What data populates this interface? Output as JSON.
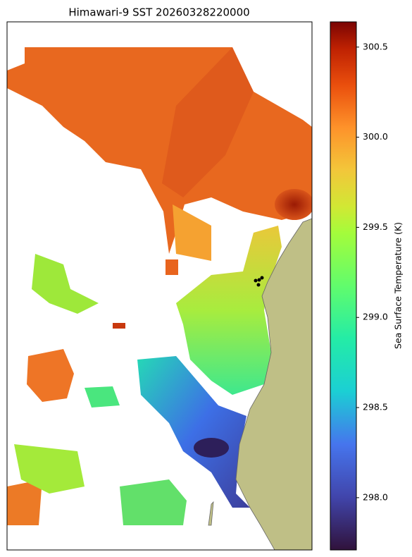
{
  "chart_data": {
    "type": "map",
    "title": "Himawari-9 SST 20260328220000",
    "colorbar_label": "Sea Surface Temperature (K)",
    "ylim": [
      297.71,
      300.64
    ],
    "yticks": [
      {
        "value": 298,
        "label": "298.0"
      },
      298.5,
      {
        "value": 299,
        "label": "299.0"
      },
      299.5,
      {
        "value": 300,
        "label": "300.0"
      },
      300.5
    ]
  }
}
